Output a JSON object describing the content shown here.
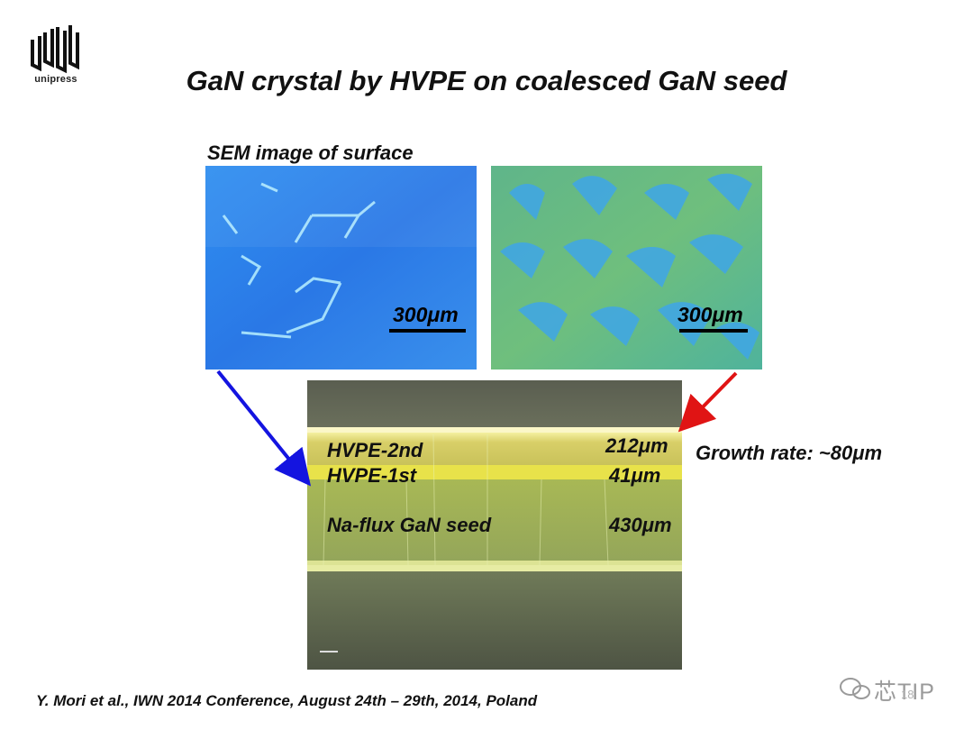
{
  "logo": {
    "text": "unipress"
  },
  "title": "GaN crystal by HVPE on coalesced GaN seed",
  "sem_label": "SEM image of surface",
  "scale_bars": {
    "left": "300μm",
    "right": "300μm"
  },
  "cross_section": {
    "layers": [
      {
        "name": "HVPE-2nd",
        "thickness": "212μm"
      },
      {
        "name": "HVPE-1st",
        "thickness": "41μm"
      },
      {
        "name": "Na-flux GaN seed",
        "thickness": "430μm"
      }
    ]
  },
  "growth_rate": "Growth rate: ~80μm",
  "citation": "Y. Mori et al., IWN 2014 Conference, August 24th – 29th, 2014, Poland",
  "watermark": {
    "text": "芯TIP",
    "page_number": "18"
  },
  "colors": {
    "arrow_left": "#1414e0",
    "arrow_right": "#e01414"
  }
}
